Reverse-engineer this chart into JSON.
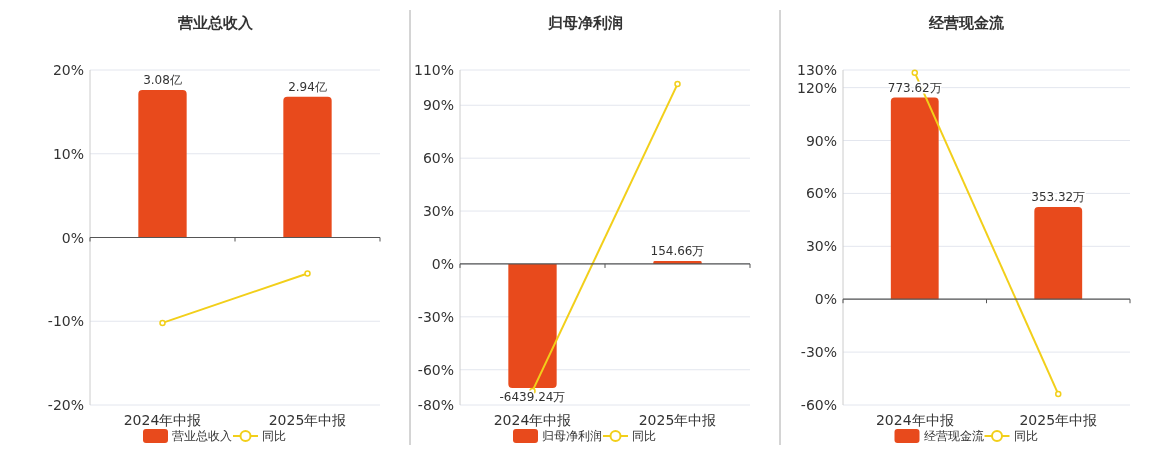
{
  "chart_data": [
    {
      "type": "bar",
      "title": "营业总收入",
      "categories": [
        "2024年中报",
        "2025年中报"
      ],
      "grid": "y",
      "legend": "bottom",
      "marker": "circle",
      "ylim": [
        -20,
        20
      ],
      "yticks": [
        {
          "value": -20,
          "label": "-20%"
        },
        {
          "value": -10,
          "label": "-10%"
        },
        {
          "value": 0,
          "label": "0%"
        },
        {
          "value": 10,
          "label": "10%"
        },
        {
          "value": 20,
          "label": "20%"
        }
      ],
      "series": [
        {
          "name": "营业总收入",
          "axis": "y2",
          "color": "#e84a1c",
          "values": [
            3.08,
            2.94
          ],
          "value_labels": [
            "3.08亿",
            "2.94亿"
          ]
        },
        {
          "name": "同比",
          "type": "line",
          "color": "#f2cf1a",
          "values": [
            -10.2,
            -4.3
          ]
        }
      ]
    },
    {
      "type": "bar",
      "title": "归母净利润",
      "categories": [
        "2024年中报",
        "2025年中报"
      ],
      "grid": "y",
      "legend": "bottom",
      "marker": "circle",
      "ylim": [
        -80,
        110
      ],
      "yticks": [
        {
          "value": -80,
          "label": "-80%"
        },
        {
          "value": -60,
          "label": "-60%"
        },
        {
          "value": -30,
          "label": "-30%"
        },
        {
          "value": 0,
          "label": "0%"
        },
        {
          "value": 30,
          "label": "30%"
        },
        {
          "value": 60,
          "label": "60%"
        },
        {
          "value": 90,
          "label": "90%"
        },
        {
          "value": 110,
          "label": "110%"
        }
      ],
      "series": [
        {
          "name": "归母净利润",
          "axis": "y2",
          "color": "#e84a1c",
          "values": [
            -6439.24,
            154.66
          ],
          "value_labels": [
            "-6439.24万",
            "154.66万"
          ]
        },
        {
          "name": "同比",
          "type": "line",
          "color": "#f2cf1a",
          "values": [
            -72,
            102
          ]
        }
      ]
    },
    {
      "type": "bar",
      "title": "经营现金流",
      "categories": [
        "2024年中报",
        "2025年中报"
      ],
      "grid": "y",
      "legend": "bottom",
      "marker": "circle",
      "ylim": [
        -60,
        130
      ],
      "yticks": [
        {
          "value": -60,
          "label": "-60%"
        },
        {
          "value": -30,
          "label": "-30%"
        },
        {
          "value": 0,
          "label": "0%"
        },
        {
          "value": 30,
          "label": "30%"
        },
        {
          "value": 60,
          "label": "60%"
        },
        {
          "value": 90,
          "label": "90%"
        },
        {
          "value": 120,
          "label": "120%"
        },
        {
          "value": 130,
          "label": "130%"
        }
      ],
      "series": [
        {
          "name": "经营现金流",
          "axis": "y2",
          "color": "#e84a1c",
          "values": [
            773.62,
            353.32
          ],
          "value_labels": [
            "773.62万",
            "353.32万"
          ]
        },
        {
          "name": "同比",
          "type": "line",
          "color": "#f2cf1a",
          "values": [
            128.5,
            -53.8
          ]
        }
      ]
    }
  ]
}
